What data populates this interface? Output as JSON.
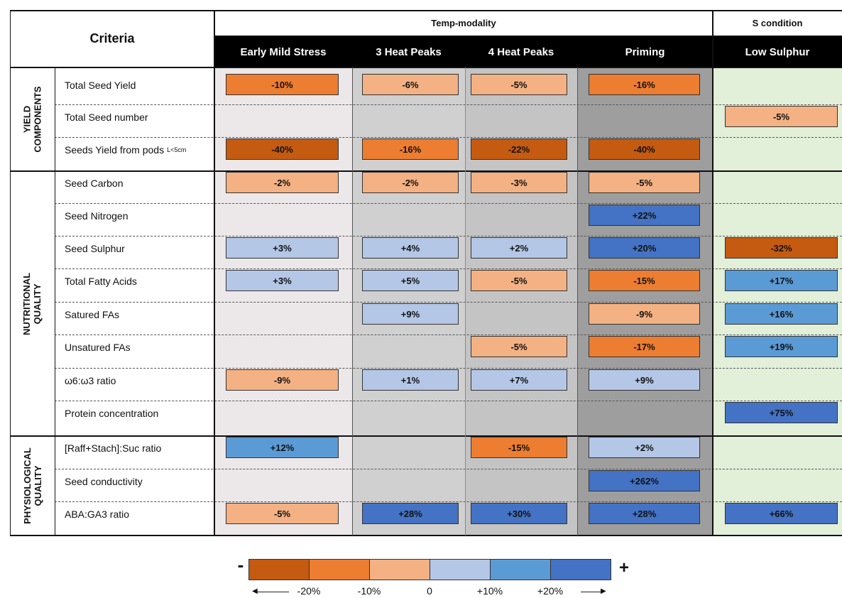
{
  "header": {
    "criteria": "Criteria",
    "group_temp": "Temp-modality",
    "group_s": "S condition",
    "columns": [
      "Early Mild Stress",
      "3 Heat Peaks",
      "4 Heat Peaks",
      "Priming",
      "Low Sulphur"
    ]
  },
  "groups": [
    {
      "label_line1": "YIELD",
      "label_line2": "COMPONENTS"
    },
    {
      "label_line1": "NUTRITIONAL",
      "label_line2": "QUALITY"
    },
    {
      "label_line1": "PHYSIOLOGICAL",
      "label_line2": "QUALITY"
    }
  ],
  "rows": [
    {
      "label": "Total Seed Yield",
      "sub": "",
      "cells": [
        "-10%",
        "-6%",
        "-5%",
        "-16%",
        ""
      ]
    },
    {
      "label": "Total Seed number",
      "sub": "",
      "cells": [
        "",
        "",
        "",
        "",
        "-5%"
      ]
    },
    {
      "label": "Seeds Yield from pods",
      "sub": "L<5cm",
      "cells": [
        "-40%",
        "-16%",
        "-22%",
        "-40%",
        ""
      ]
    },
    {
      "label": "Seed Carbon",
      "sub": "",
      "cells": [
        "-2%",
        "-2%",
        "-3%",
        "-5%",
        ""
      ]
    },
    {
      "label": "Seed Nitrogen",
      "sub": "",
      "cells": [
        "",
        "",
        "",
        "+22%",
        ""
      ]
    },
    {
      "label": "Seed Sulphur",
      "sub": "",
      "cells": [
        "+3%",
        "+4%",
        "+2%",
        "+20%",
        "-32%"
      ]
    },
    {
      "label": "Total Fatty Acids",
      "sub": "",
      "cells": [
        "+3%",
        "+5%",
        "-5%",
        "-15%",
        "+17%"
      ]
    },
    {
      "label": "Satured FAs",
      "sub": "",
      "cells": [
        "",
        "+9%",
        "",
        "-9%",
        "+16%"
      ]
    },
    {
      "label": "Unsatured FAs",
      "sub": "",
      "cells": [
        "",
        "",
        "-5%",
        "-17%",
        "+19%"
      ]
    },
    {
      "label": "ω6:ω3 ratio",
      "sub": "",
      "cells": [
        "-9%",
        "+1%",
        "+7%",
        "+9%",
        ""
      ]
    },
    {
      "label": "Protein concentration",
      "sub": "",
      "cells": [
        "",
        "",
        "",
        "",
        "+75%"
      ]
    },
    {
      "label": "[Raff+Stach]:Suc ratio",
      "sub": "",
      "cells": [
        "+12%",
        "",
        "-15%",
        "+2%",
        ""
      ]
    },
    {
      "label": "Seed conductivity",
      "sub": "",
      "cells": [
        "",
        "",
        "",
        "+262%",
        ""
      ]
    },
    {
      "label": "ABA:GA3 ratio",
      "sub": "",
      "cells": [
        "-5%",
        "+28%",
        "+30%",
        "+28%",
        "+66%"
      ]
    }
  ],
  "legend": {
    "minus": "-",
    "plus": "+",
    "ticks": [
      "-20%",
      "-10%",
      "0",
      "+10%",
      "+20%"
    ],
    "colors": [
      "#c55a11",
      "#ed7d31",
      "#f4b183",
      "#b4c7e7",
      "#5b9bd5",
      "#4472c4"
    ]
  },
  "colors": {
    "col_bg": [
      "#ece8e9",
      "#d0d0d0",
      "#c4c4c4",
      "#9e9e9e",
      "#e2efd9"
    ]
  }
}
